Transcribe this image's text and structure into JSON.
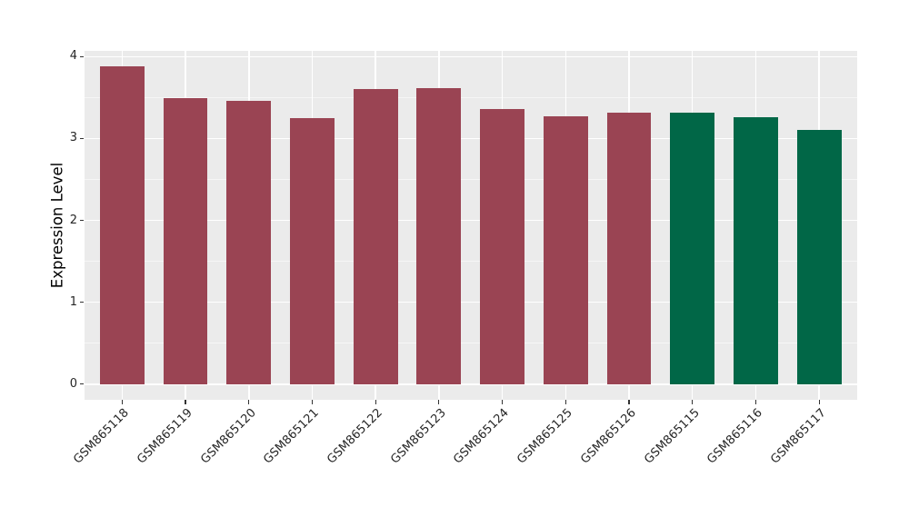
{
  "chart_data": {
    "type": "bar",
    "title": "",
    "xlabel": "",
    "ylabel": "Expression Level",
    "categories": [
      "GSM865118",
      "GSM865119",
      "GSM865120",
      "GSM865121",
      "GSM865122",
      "GSM865123",
      "GSM865124",
      "GSM865125",
      "GSM865126",
      "GSM865115",
      "GSM865116",
      "GSM865117"
    ],
    "values": [
      3.88,
      3.49,
      3.46,
      3.25,
      3.6,
      3.61,
      3.36,
      3.27,
      3.32,
      3.32,
      3.26,
      3.11
    ],
    "bar_colors": [
      "#9A4453",
      "#9A4453",
      "#9A4453",
      "#9A4453",
      "#9A4453",
      "#9A4453",
      "#9A4453",
      "#9A4453",
      "#9A4453",
      "#016747",
      "#016747",
      "#016747"
    ],
    "accent_colors": {
      "maroon_bars": "#9A4453",
      "green_bars": "#016747",
      "panel_background": "#EBEBEB",
      "gridline_major": "#FFFFFF",
      "tick_label_color": "#262626"
    },
    "ylim": [
      -0.19,
      4.07
    ],
    "yticks": [
      "0",
      "1",
      "2",
      "3",
      "4"
    ],
    "ytick_values": [
      0,
      1,
      2,
      3,
      4
    ],
    "yticks_minor_values": [
      0.5,
      1.5,
      2.5,
      3.5
    ],
    "x_tick_rotation_deg": 45,
    "bar_width_fraction": 0.7,
    "grid": "horizontal major+minor, vertical major at category centers",
    "legend": "none"
  }
}
